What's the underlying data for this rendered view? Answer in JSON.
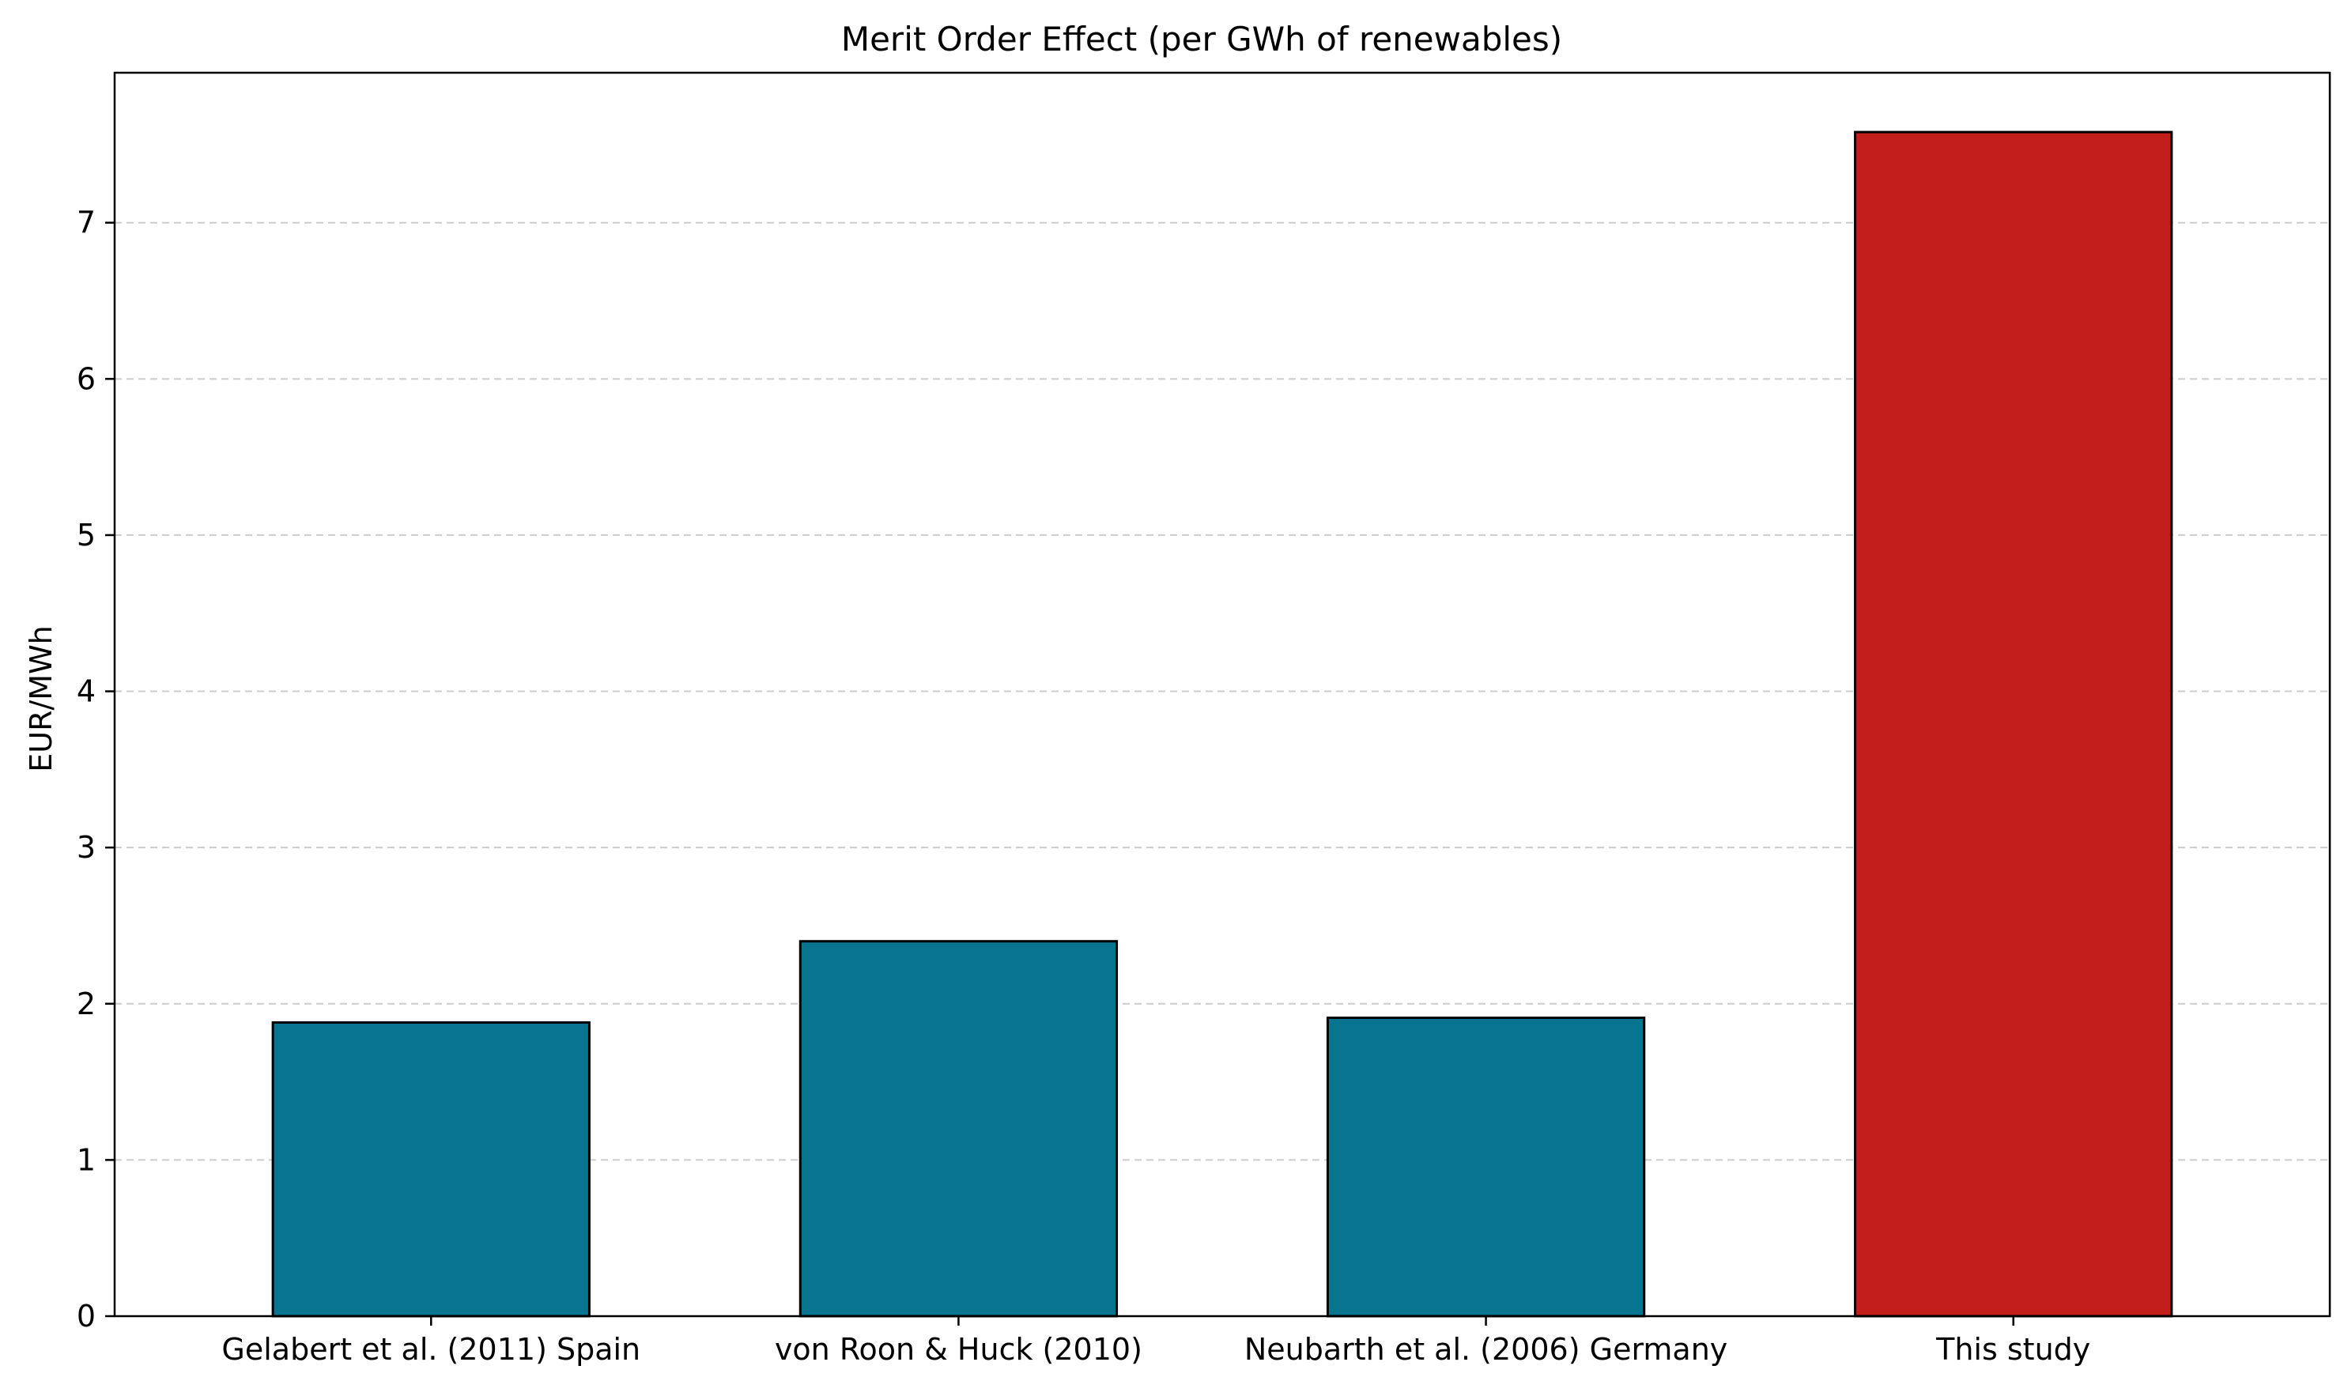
{
  "chart_data": {
    "type": "bar",
    "title": "Merit Order Effect (per GWh of renewables)",
    "xlabel": "",
    "ylabel": "EUR/MWh",
    "categories": [
      "Gelabert et al. (2011) Spain",
      "von Roon & Huck (2010)",
      "Neubarth et al. (2006) Germany",
      "This study"
    ],
    "values": [
      1.88,
      2.4,
      1.91,
      7.58
    ],
    "bar_colors": [
      "#08748f",
      "#08748f",
      "#08748f",
      "#c21e1c"
    ],
    "edge_color": "#000000",
    "ylim": [
      0,
      7.96
    ],
    "yticks": [
      0,
      1,
      2,
      3,
      4,
      5,
      6,
      7
    ],
    "grid": {
      "axis": "y",
      "style": "dashed",
      "color": "#cccccc"
    },
    "legend": "none"
  }
}
